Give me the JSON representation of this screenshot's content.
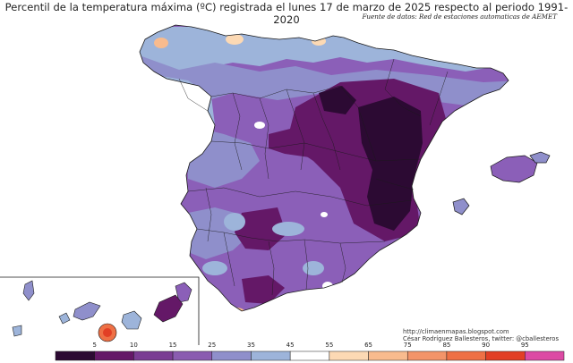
{
  "title": "Percentil de la temperatura máxima (ºC) registrada el lunes 17 de marzo de 2025 respecto al periodo 1991-2020",
  "source": "Fuente de datos: Red de estaciones automaticas de AEMET",
  "credits": {
    "blog": "http://climaenmapas.blogspot.com",
    "author": "César Rodríguez Ballesteros, twitter: @cballesteros"
  },
  "legend": {
    "breaks": [
      "5",
      "10",
      "15",
      "25",
      "35",
      "45",
      "55",
      "65",
      "75",
      "85",
      "90",
      "95"
    ],
    "colors": [
      "#2c0a33",
      "#641867",
      "#7a3d93",
      "#8a5cb0",
      "#8f8fcb",
      "#9db4da",
      "#ffffff",
      "#fcd9b4",
      "#f8bb8e",
      "#f39469",
      "#ee7045",
      "#e23f25",
      "#dc4aa4"
    ]
  },
  "colors": {
    "sea": "#ffffff",
    "border": "#1a1a1a",
    "base": "#8b5fb8"
  }
}
